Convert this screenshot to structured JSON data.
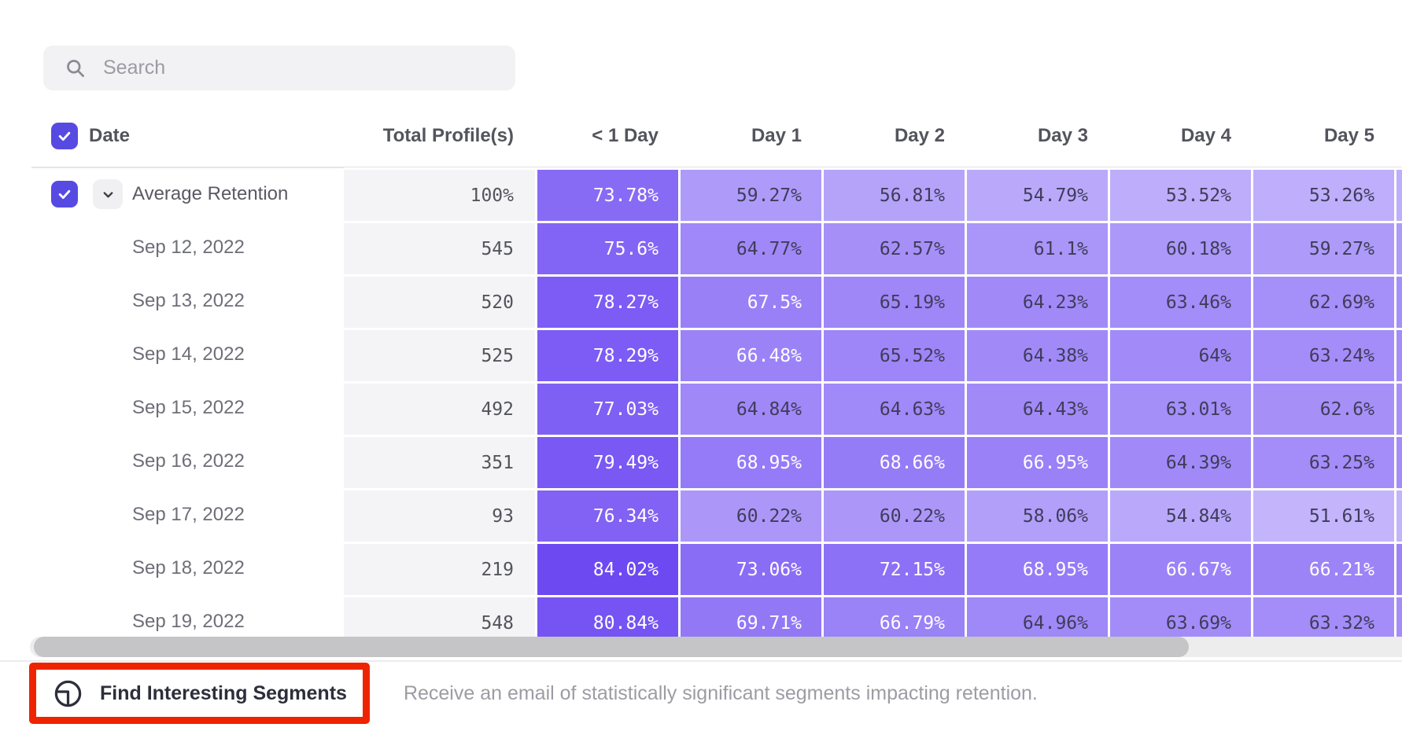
{
  "search": {
    "placeholder": "Search"
  },
  "header": {
    "date_label": "Date",
    "total_label": "Total Profile(s)",
    "day_columns": [
      "< 1 Day",
      "Day 1",
      "Day 2",
      "Day 3",
      "Day 4",
      "Day 5"
    ]
  },
  "table": {
    "rows": [
      {
        "label": "Average Retention",
        "is_average": true,
        "total": "100%",
        "cells": [
          "73.78%",
          "59.27%",
          "56.81%",
          "54.79%",
          "53.52%",
          "53.26%"
        ]
      },
      {
        "label": "Sep 12, 2022",
        "is_average": false,
        "total": "545",
        "cells": [
          "75.6%",
          "64.77%",
          "62.57%",
          "61.1%",
          "60.18%",
          "59.27%"
        ]
      },
      {
        "label": "Sep 13, 2022",
        "is_average": false,
        "total": "520",
        "cells": [
          "78.27%",
          "67.5%",
          "65.19%",
          "64.23%",
          "63.46%",
          "62.69%"
        ]
      },
      {
        "label": "Sep 14, 2022",
        "is_average": false,
        "total": "525",
        "cells": [
          "78.29%",
          "66.48%",
          "65.52%",
          "64.38%",
          "64%",
          "63.24%"
        ]
      },
      {
        "label": "Sep 15, 2022",
        "is_average": false,
        "total": "492",
        "cells": [
          "77.03%",
          "64.84%",
          "64.63%",
          "64.43%",
          "63.01%",
          "62.6%"
        ]
      },
      {
        "label": "Sep 16, 2022",
        "is_average": false,
        "total": "351",
        "cells": [
          "79.49%",
          "68.95%",
          "68.66%",
          "66.95%",
          "64.39%",
          "63.25%"
        ]
      },
      {
        "label": "Sep 17, 2022",
        "is_average": false,
        "total": "93",
        "cells": [
          "76.34%",
          "60.22%",
          "60.22%",
          "58.06%",
          "54.84%",
          "51.61%"
        ]
      },
      {
        "label": "Sep 18, 2022",
        "is_average": false,
        "total": "219",
        "cells": [
          "84.02%",
          "73.06%",
          "72.15%",
          "68.95%",
          "66.67%",
          "66.21%"
        ]
      },
      {
        "label": "Sep 19, 2022",
        "is_average": false,
        "total": "548",
        "cells": [
          "80.84%",
          "69.71%",
          "66.79%",
          "64.96%",
          "63.69%",
          "63.32%"
        ]
      }
    ]
  },
  "footer": {
    "button_label": "Find Interesting Segments",
    "description": "Receive an email of statistically significant segments impacting retention."
  },
  "colors": {
    "accent_purple": "#574ae2",
    "heat_light": "#c7b9fc",
    "heat_dark": "#6a46f2",
    "heat_text_dark": "#403c5a",
    "heat_text_light": "#ffffff",
    "annotation_red": "#ee2400"
  }
}
